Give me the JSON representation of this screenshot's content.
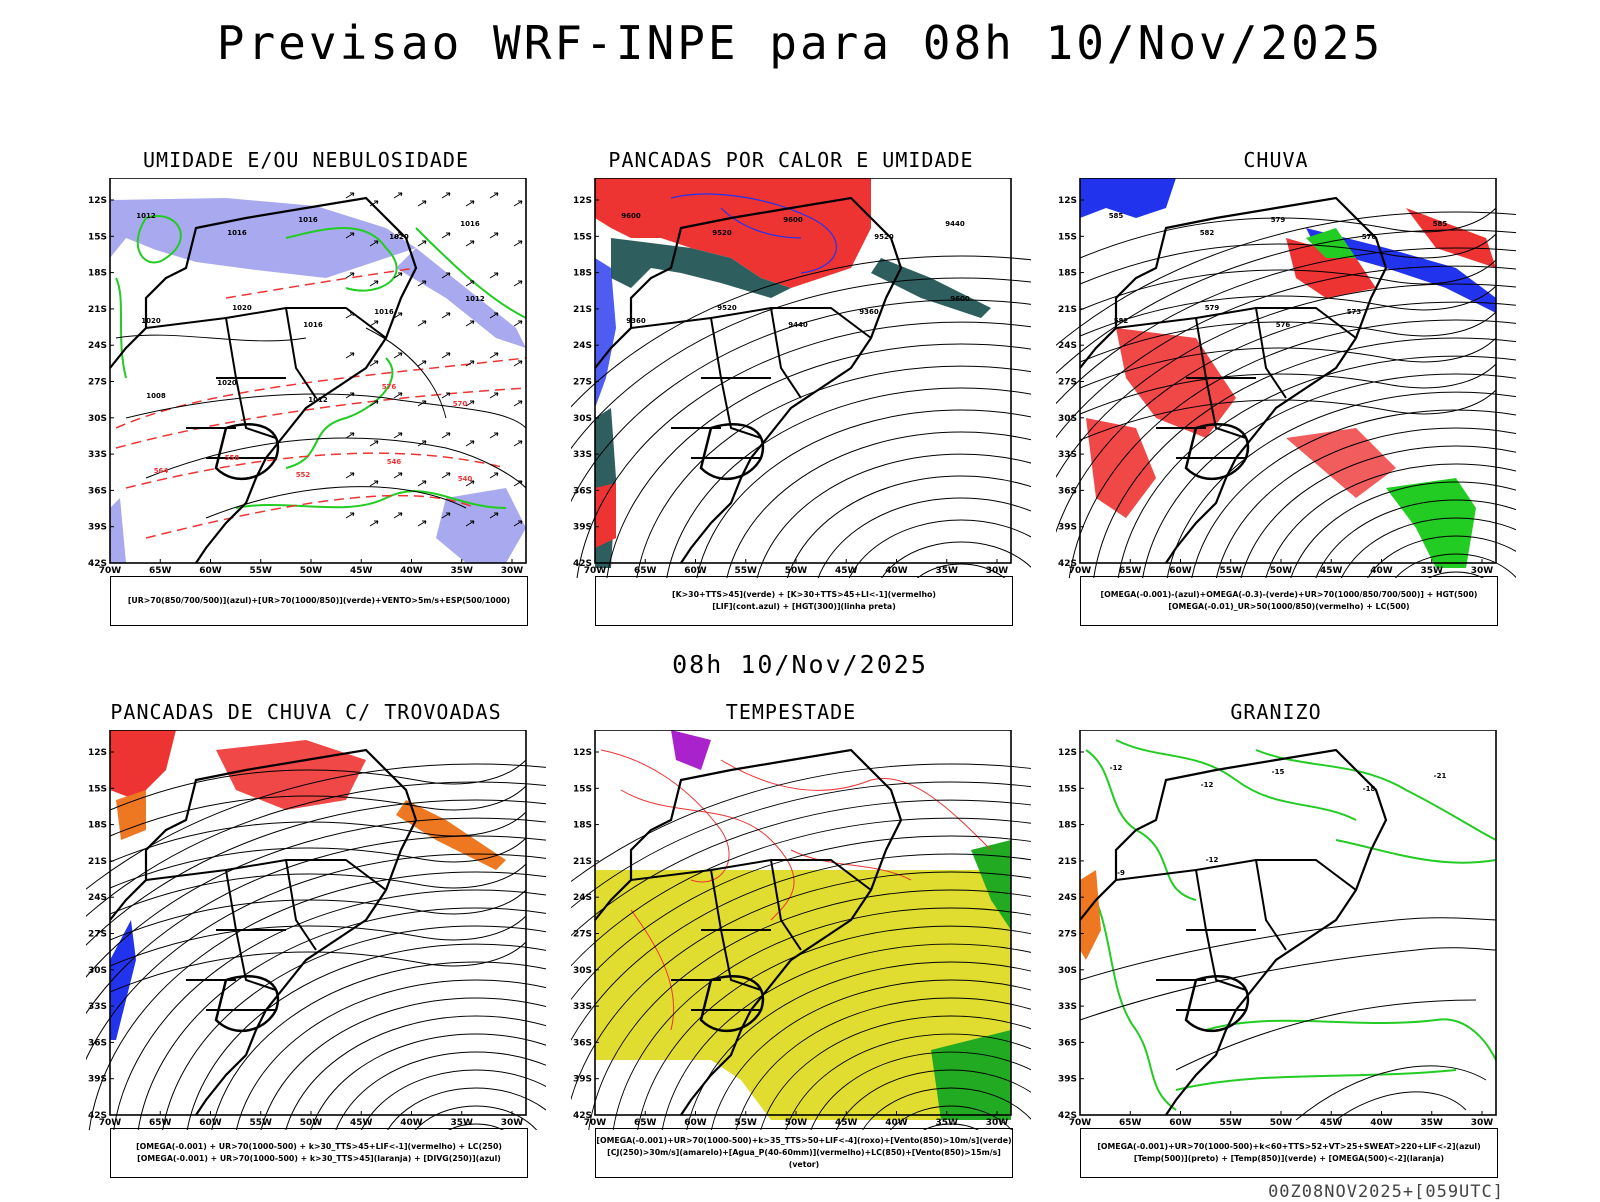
{
  "page": {
    "title": "Previsao WRF-INPE  para 08h 10/Nov/2025",
    "mid_date": "08h 10/Nov/2025",
    "footer": "00Z08NOV2025+[059UTC]"
  },
  "axes": {
    "lat_labels": [
      "12S",
      "15S",
      "18S",
      "21S",
      "24S",
      "27S",
      "30S",
      "33S",
      "36S",
      "39S",
      "42S"
    ],
    "lon_labels": [
      "70W",
      "65W",
      "60W",
      "55W",
      "50W",
      "45W",
      "40W",
      "35W",
      "30W"
    ]
  },
  "colors": {
    "blue_shade": "#a9a9f0",
    "blue": "#2233ee",
    "green": "#22cc22",
    "red": "#ee3333",
    "orange": "#ee7722",
    "yellow": "#e0dc30",
    "teal": "#2f5e5e",
    "purple": "#aa22cc",
    "black": "#000000"
  },
  "panels": [
    {
      "id": "umidade",
      "title": "UMIDADE E/OU NEBULOSIDADE",
      "legend": [
        "[UR>70(850/700/500)](azul)+[UR>70(1000/850)](verde)+VENTO>5m/s+ESP(500/1000)"
      ],
      "labels": [
        "1012",
        "1016",
        "1016",
        "1020",
        "1016",
        "1020",
        "1020",
        "1016",
        "1016",
        "1012",
        "1008",
        "1020",
        "1012",
        "576",
        "570",
        "564",
        "558",
        "552",
        "546",
        "540"
      ]
    },
    {
      "id": "pancadas-calor",
      "title": "PANCADAS POR CALOR E UMIDADE",
      "legend": [
        "[K>30+TTS>45](verde) + [K>30+TTS>45+LI<-1](vermelho)",
        "[LIF](cont.azul) + [HGT(300)](linha preta)"
      ],
      "labels": [
        "9600",
        "9520",
        "9600",
        "9520",
        "9440",
        "9360",
        "9520",
        "9440",
        "9360",
        "9600"
      ]
    },
    {
      "id": "chuva",
      "title": "CHUVA",
      "legend": [
        "[OMEGA(-0.001)-(azul)+OMEGA(-0.3)-(verde)+UR>70(1000/850/700/500)] + HGT(500)",
        "[OMEGA(-0.01)_UR>50(1000/850)(vermelho) + LC(500)"
      ],
      "labels": [
        "585",
        "582",
        "579",
        "576",
        "585",
        "582",
        "579",
        "576",
        "573"
      ]
    },
    {
      "id": "pancadas-trovoadas",
      "title": "PANCADAS DE CHUVA C/ TROVOADAS",
      "legend": [
        "[OMEGA(-0.001) + UR>70(1000-500) + k>30_TTS>45+LIF<-1](vermelho) + LC(250)",
        "[OMEGA(-0.001) + UR>70(1000-500) + k>30_TTS>45](laranja) + [DIVG(250)](azul)"
      ],
      "labels": []
    },
    {
      "id": "tempestade",
      "title": "TEMPESTADE",
      "legend": [
        "[OMEGA(-0.001)+UR>70(1000-500)+k>35_TTS>50+LIF<-4](roxo)+[Vento(850)>10m/s](verde)",
        "[CJ(250)>30m/s](amarelo)+[Agua_P(40-60mm)](vermelho)+LC(850)+[Vento(850)>15m/s](vetor)"
      ],
      "labels": []
    },
    {
      "id": "granizo",
      "title": "GRANIZO",
      "legend": [
        "[OMEGA(-0.001)+UR>70(1000-500)+k<60+TTS>52+VT>25+SWEAT>220+LIF<-2](azul)",
        "[Temp(500)](preto) + [Temp(850)](verde) + [OMEGA(500)<-2](laranja)"
      ],
      "labels": [
        "-12",
        "-12",
        "-15",
        "-18",
        "-21",
        "-9",
        "-12"
      ]
    }
  ]
}
